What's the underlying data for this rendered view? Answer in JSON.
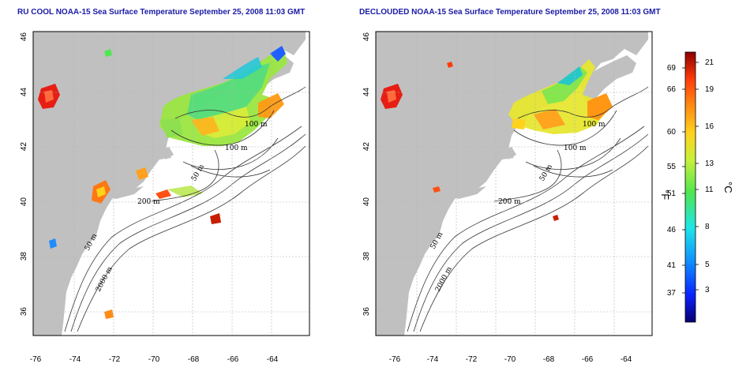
{
  "titles": {
    "left": "RU COOL NOAA-15 Sea Surface Temperature September 25, 2008 11:03 GMT",
    "right": "DECLOUDED NOAA-15 Sea Surface Temperature September 25, 2008 11:03 GMT"
  },
  "axes": {
    "lon_ticks": [
      "-76",
      "-74",
      "-72",
      "-70",
      "-68",
      "-66",
      "-64"
    ],
    "lat_ticks": [
      "36",
      "38",
      "40",
      "42",
      "44",
      "46"
    ],
    "lon_range": [
      -77,
      -63
    ],
    "lat_range": [
      35,
      46
    ]
  },
  "contour_labels": {
    "left": [
      "100 m",
      "100 m",
      "50 m",
      "200 m",
      "50 m",
      "2000 m"
    ],
    "right": [
      "100 m",
      "100 m",
      "50 m",
      "200 m",
      "50 m",
      "2000 m"
    ]
  },
  "colorbar": {
    "fahrenheit_label": "°F",
    "celsius_label": "°C",
    "fahrenheit_ticks": [
      "69",
      "66",
      "60",
      "55",
      "51",
      "46",
      "41",
      "37"
    ],
    "celsius_ticks": [
      "21",
      "19",
      "16",
      "13",
      "11",
      "8",
      "5",
      "3"
    ],
    "colors": [
      "#08006e",
      "#0a22ff",
      "#0f8cff",
      "#1ee6e6",
      "#50e650",
      "#c8f03c",
      "#ffd21e",
      "#ff8c14",
      "#ff3c0a",
      "#8c0000"
    ]
  },
  "colors": {
    "land": "#c0c0c0",
    "title": "#1a1aa6",
    "grid": "#b4b4b4"
  }
}
